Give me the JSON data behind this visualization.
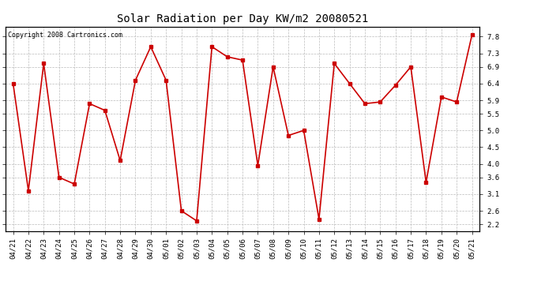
{
  "title": "Solar Radiation per Day KW/m2 20080521",
  "copyright_text": "Copyright 2008 Cartronics.com",
  "dates": [
    "04/21",
    "04/22",
    "04/23",
    "04/24",
    "04/25",
    "04/26",
    "04/27",
    "04/28",
    "04/29",
    "04/30",
    "05/01",
    "05/02",
    "05/03",
    "05/04",
    "05/05",
    "05/06",
    "05/07",
    "05/08",
    "05/09",
    "05/10",
    "05/11",
    "05/12",
    "05/13",
    "05/14",
    "05/15",
    "05/16",
    "05/17",
    "05/18",
    "05/19",
    "05/20",
    "05/21"
  ],
  "values": [
    6.4,
    3.2,
    7.0,
    3.6,
    3.4,
    5.8,
    5.6,
    4.1,
    6.5,
    7.5,
    6.5,
    2.6,
    2.3,
    7.5,
    7.2,
    7.1,
    3.95,
    6.9,
    4.85,
    5.0,
    2.35,
    7.0,
    6.4,
    5.8,
    5.85,
    6.35,
    6.9,
    3.45,
    6.0,
    5.85,
    7.85
  ],
  "line_color": "#cc0000",
  "marker": "s",
  "marker_size": 2.5,
  "line_width": 1.2,
  "bg_color": "#ffffff",
  "plot_bg_color": "#ffffff",
  "grid_color": "#bbbbbb",
  "ylim": [
    2.0,
    8.1
  ],
  "yticks": [
    2.2,
    2.6,
    3.1,
    3.6,
    4.0,
    4.5,
    5.0,
    5.5,
    5.9,
    6.4,
    6.9,
    7.3,
    7.8
  ],
  "ytick_labels": [
    "2.2",
    "2.6",
    "3.1",
    "3.6",
    "4.0",
    "4.5",
    "5.0",
    "5.5",
    "5.9",
    "6.4",
    "6.9",
    "7.3",
    "7.8"
  ],
  "title_fontsize": 10,
  "tick_fontsize": 6.5,
  "copyright_fontsize": 6
}
